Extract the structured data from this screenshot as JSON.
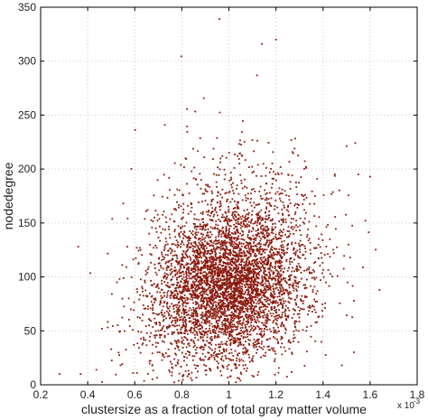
{
  "chart_data": {
    "type": "scatter",
    "xlabel": "clustersize as a fraction of total gray matter volume",
    "ylabel": "nodedegree",
    "x_multiplier_label": "x 10",
    "x_multiplier_exponent": "-3",
    "xlim": [
      0.2,
      1.8
    ],
    "ylim": [
      0,
      350
    ],
    "xticks": [
      "0.2",
      "0.4",
      "0.6",
      "0.8",
      "1",
      "1.2",
      "1.4",
      "1.6",
      "1.8"
    ],
    "yticks": [
      "0",
      "50",
      "100",
      "150",
      "200",
      "250",
      "300",
      "350"
    ],
    "grid": true,
    "marker_color": "#8b1a0e",
    "point_count_approx": 5000,
    "distribution": {
      "x_center": 1.0,
      "x_spread": 0.17,
      "y_center": 95,
      "y_spread": 38,
      "correlation": 0.18
    },
    "notable_points": [
      {
        "x": 0.96,
        "y": 339
      },
      {
        "x": 1.2,
        "y": 320
      },
      {
        "x": 1.14,
        "y": 316
      },
      {
        "x": 0.28,
        "y": 10
      },
      {
        "x": 0.37,
        "y": 10
      },
      {
        "x": 0.36,
        "y": 128
      },
      {
        "x": 1.6,
        "y": 193
      },
      {
        "x": 1.55,
        "y": 195
      },
      {
        "x": 1.64,
        "y": 88
      },
      {
        "x": 0.5,
        "y": 33
      },
      {
        "x": 1.48,
        "y": 18
      }
    ]
  }
}
